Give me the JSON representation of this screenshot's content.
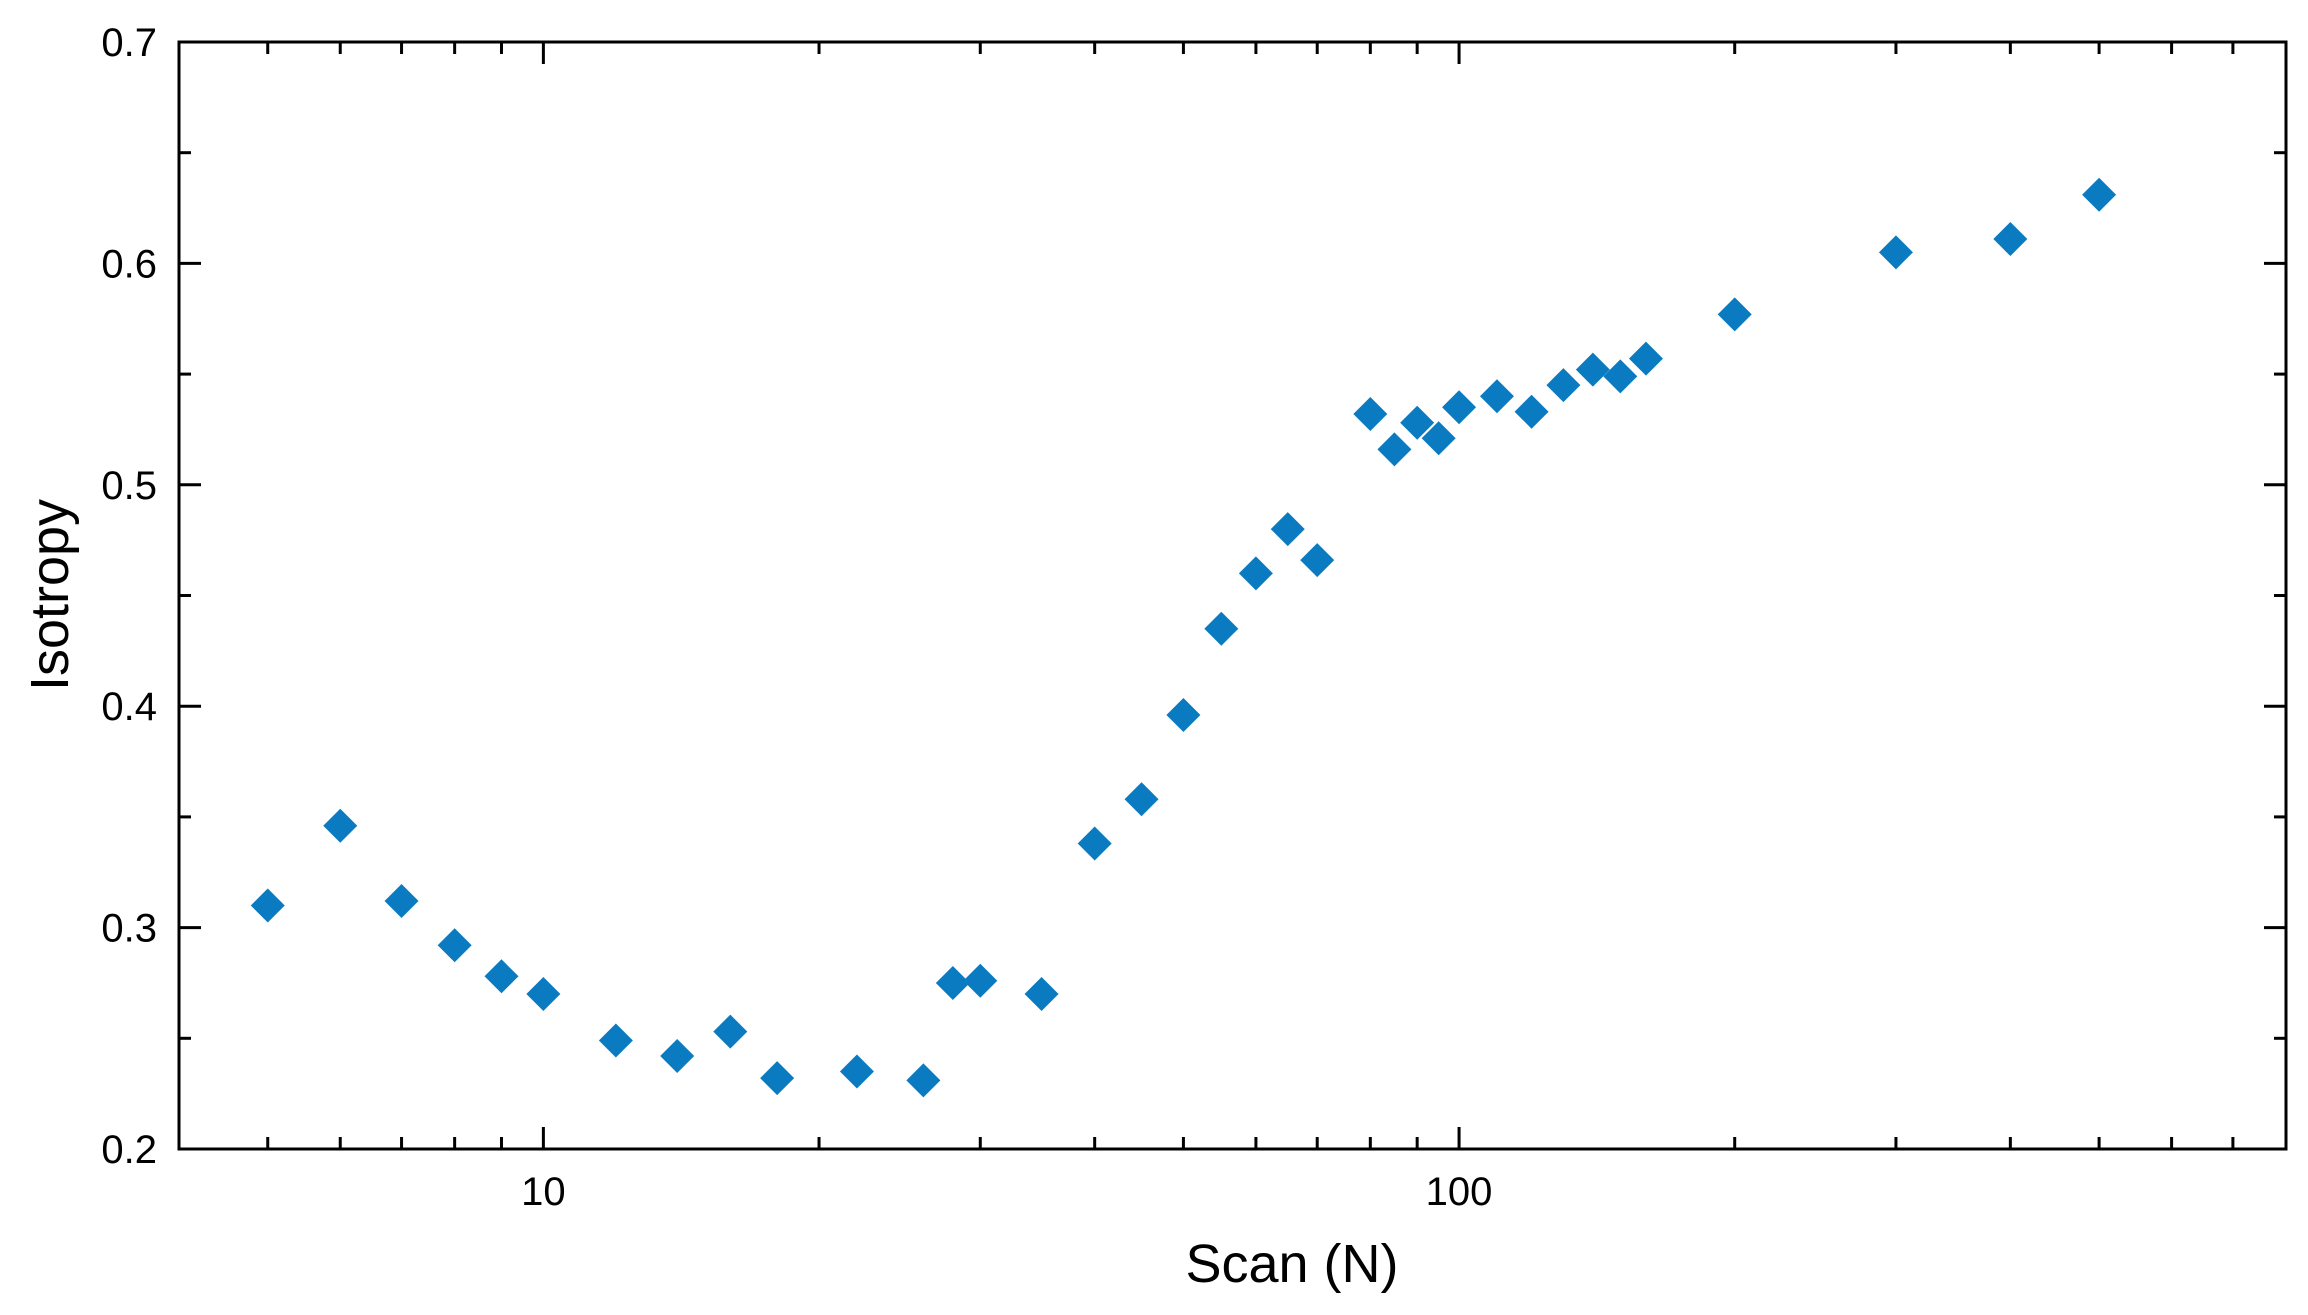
{
  "chart_data": {
    "type": "scatter",
    "xlabel": "Scan (N)",
    "ylabel": "Isotropy",
    "xscale": "log",
    "xlim": [
      4,
      800
    ],
    "ylim": [
      0.2,
      0.7
    ],
    "x_tick_labels": [
      "10",
      "100"
    ],
    "x_tick_values": [
      10,
      100
    ],
    "y_tick_labels": [
      "0.2",
      "0.3",
      "0.4",
      "0.5",
      "0.6",
      "0.7"
    ],
    "y_tick_values": [
      0.2,
      0.3,
      0.4,
      0.5,
      0.6,
      0.7
    ],
    "grid": false,
    "marker": "diamond",
    "color": "#0B7BC1",
    "series": [
      {
        "points": [
          [
            5,
            0.31
          ],
          [
            6,
            0.346
          ],
          [
            7,
            0.312
          ],
          [
            8,
            0.292
          ],
          [
            9,
            0.278
          ],
          [
            10,
            0.27
          ],
          [
            12,
            0.249
          ],
          [
            14,
            0.242
          ],
          [
            16,
            0.253
          ],
          [
            18,
            0.232
          ],
          [
            22,
            0.235
          ],
          [
            26,
            0.231
          ],
          [
            28,
            0.275
          ],
          [
            30,
            0.276
          ],
          [
            35,
            0.27
          ],
          [
            40,
            0.338
          ],
          [
            45,
            0.358
          ],
          [
            50,
            0.396
          ],
          [
            55,
            0.435
          ],
          [
            60,
            0.46
          ],
          [
            65,
            0.48
          ],
          [
            70,
            0.466
          ],
          [
            80,
            0.532
          ],
          [
            85,
            0.516
          ],
          [
            90,
            0.528
          ],
          [
            95,
            0.521
          ],
          [
            100,
            0.535
          ],
          [
            110,
            0.54
          ],
          [
            120,
            0.533
          ],
          [
            130,
            0.545
          ],
          [
            140,
            0.552
          ],
          [
            150,
            0.549
          ],
          [
            160,
            0.557
          ],
          [
            200,
            0.577
          ],
          [
            300,
            0.605
          ],
          [
            400,
            0.611
          ],
          [
            500,
            0.631
          ]
        ]
      }
    ]
  }
}
